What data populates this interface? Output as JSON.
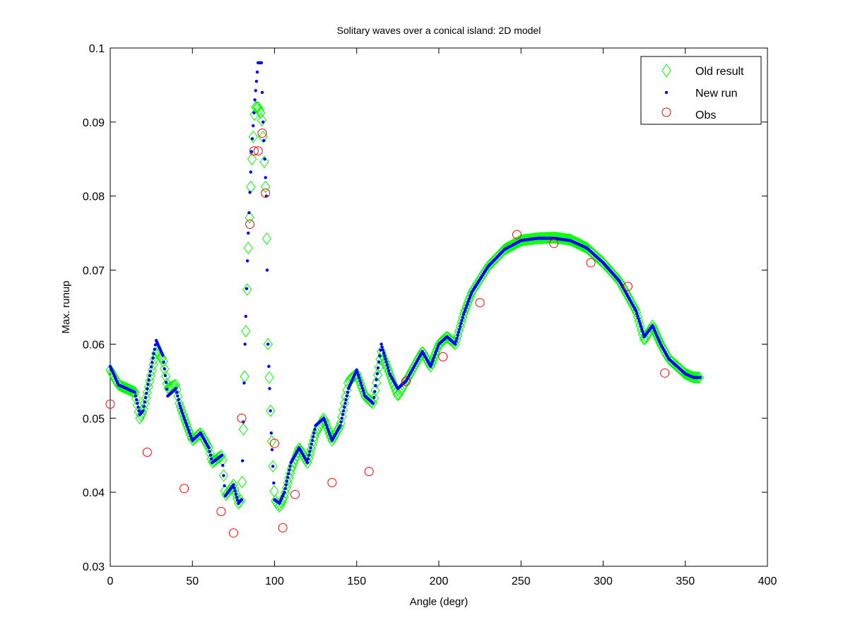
{
  "chart_data": {
    "type": "scatter",
    "title": "Solitary waves over a conical island: 2D model",
    "xlabel": "Angle (degr)",
    "ylabel": "Max. runup",
    "xlim": [
      0,
      400
    ],
    "ylim": [
      0.03,
      0.1
    ],
    "xticks": [
      0,
      50,
      100,
      150,
      200,
      250,
      300,
      350,
      400
    ],
    "yticks": [
      0.03,
      0.04,
      0.05,
      0.06,
      0.07,
      0.08,
      0.09,
      0.1
    ],
    "xtick_labels": [
      "0",
      "50",
      "100",
      "150",
      "200",
      "250",
      "300",
      "350",
      "400"
    ],
    "ytick_labels": [
      "0.03",
      "0.04",
      "0.05",
      "0.06",
      "0.07",
      "0.08",
      "0.09",
      "0.1"
    ],
    "grid": false,
    "legend_position": "top-right",
    "series": [
      {
        "name": "Old result",
        "marker": "diamond",
        "color": "#00ff00",
        "points": [
          [
            0,
            0.0565
          ],
          [
            5,
            0.0545
          ],
          [
            10,
            0.054
          ],
          [
            15,
            0.0535
          ],
          [
            18,
            0.05
          ],
          [
            20,
            0.051
          ],
          [
            28,
            0.059
          ],
          [
            32,
            0.058
          ],
          [
            35,
            0.054
          ],
          [
            40,
            0.0545
          ],
          [
            42,
            0.052
          ],
          [
            45,
            0.05
          ],
          [
            50,
            0.047
          ],
          [
            55,
            0.048
          ],
          [
            60,
            0.046
          ],
          [
            62,
            0.044
          ],
          [
            68,
            0.045
          ],
          [
            70,
            0.0395
          ],
          [
            75,
            0.041
          ],
          [
            78,
            0.0385
          ],
          [
            80,
            0.039
          ],
          [
            82,
            0.058
          ],
          [
            84,
            0.073
          ],
          [
            86,
            0.084
          ],
          [
            88,
            0.092
          ],
          [
            90,
            0.092
          ],
          [
            92,
            0.091
          ],
          [
            93,
            0.088
          ],
          [
            95,
            0.079
          ],
          [
            96,
            0.06
          ],
          [
            98,
            0.048
          ],
          [
            100,
            0.039
          ],
          [
            103,
            0.038
          ],
          [
            106,
            0.0395
          ],
          [
            110,
            0.043
          ],
          [
            115,
            0.046
          ],
          [
            120,
            0.044
          ],
          [
            125,
            0.048
          ],
          [
            130,
            0.05
          ],
          [
            135,
            0.047
          ],
          [
            140,
            0.049
          ],
          [
            145,
            0.055
          ],
          [
            150,
            0.056
          ],
          [
            155,
            0.053
          ],
          [
            160,
            0.052
          ],
          [
            165,
            0.059
          ],
          [
            170,
            0.056
          ],
          [
            175,
            0.053
          ],
          [
            180,
            0.055
          ],
          [
            185,
            0.057
          ],
          [
            190,
            0.059
          ],
          [
            195,
            0.057
          ],
          [
            200,
            0.06
          ],
          [
            205,
            0.061
          ],
          [
            210,
            0.06
          ],
          [
            215,
            0.064
          ],
          [
            220,
            0.067
          ],
          [
            230,
            0.0705
          ],
          [
            240,
            0.0728
          ],
          [
            250,
            0.074
          ],
          [
            260,
            0.0743
          ],
          [
            270,
            0.0744
          ],
          [
            280,
            0.0741
          ],
          [
            290,
            0.073
          ],
          [
            300,
            0.071
          ],
          [
            310,
            0.0685
          ],
          [
            315,
            0.0665
          ],
          [
            320,
            0.0645
          ],
          [
            325,
            0.0605
          ],
          [
            330,
            0.0625
          ],
          [
            335,
            0.06
          ],
          [
            340,
            0.058
          ],
          [
            345,
            0.057
          ],
          [
            350,
            0.056
          ],
          [
            355,
            0.0555
          ],
          [
            359,
            0.0555
          ]
        ]
      },
      {
        "name": "New run",
        "marker": "dot",
        "color": "#0000ff",
        "points": [
          [
            0,
            0.057
          ],
          [
            5,
            0.0545
          ],
          [
            10,
            0.054
          ],
          [
            15,
            0.0535
          ],
          [
            18,
            0.0505
          ],
          [
            20,
            0.051
          ],
          [
            28,
            0.0605
          ],
          [
            32,
            0.0585
          ],
          [
            35,
            0.053
          ],
          [
            40,
            0.054
          ],
          [
            42,
            0.052
          ],
          [
            45,
            0.05
          ],
          [
            50,
            0.047
          ],
          [
            55,
            0.048
          ],
          [
            60,
            0.046
          ],
          [
            62,
            0.044
          ],
          [
            68,
            0.045
          ],
          [
            70,
            0.0395
          ],
          [
            75,
            0.041
          ],
          [
            78,
            0.0385
          ],
          [
            80,
            0.039
          ],
          [
            82,
            0.06
          ],
          [
            84,
            0.075
          ],
          [
            86,
            0.086
          ],
          [
            88,
            0.093
          ],
          [
            90,
            0.098
          ],
          [
            92,
            0.098
          ],
          [
            93,
            0.09
          ],
          [
            95,
            0.08
          ],
          [
            96,
            0.06
          ],
          [
            98,
            0.048
          ],
          [
            100,
            0.039
          ],
          [
            103,
            0.0385
          ],
          [
            106,
            0.04
          ],
          [
            110,
            0.044
          ],
          [
            115,
            0.046
          ],
          [
            120,
            0.044
          ],
          [
            125,
            0.049
          ],
          [
            130,
            0.05
          ],
          [
            135,
            0.047
          ],
          [
            140,
            0.049
          ],
          [
            145,
            0.054
          ],
          [
            150,
            0.0565
          ],
          [
            155,
            0.053
          ],
          [
            160,
            0.052
          ],
          [
            165,
            0.06
          ],
          [
            170,
            0.056
          ],
          [
            175,
            0.054
          ],
          [
            180,
            0.055
          ],
          [
            185,
            0.057
          ],
          [
            190,
            0.059
          ],
          [
            195,
            0.057
          ],
          [
            200,
            0.06
          ],
          [
            205,
            0.061
          ],
          [
            210,
            0.06
          ],
          [
            215,
            0.064
          ],
          [
            220,
            0.067
          ],
          [
            230,
            0.0705
          ],
          [
            240,
            0.0728
          ],
          [
            250,
            0.074
          ],
          [
            260,
            0.0743
          ],
          [
            270,
            0.0743
          ],
          [
            280,
            0.074
          ],
          [
            290,
            0.073
          ],
          [
            300,
            0.071
          ],
          [
            310,
            0.0685
          ],
          [
            315,
            0.0665
          ],
          [
            320,
            0.0645
          ],
          [
            325,
            0.061
          ],
          [
            330,
            0.0625
          ],
          [
            335,
            0.06
          ],
          [
            340,
            0.058
          ],
          [
            345,
            0.057
          ],
          [
            350,
            0.056
          ],
          [
            355,
            0.0555
          ],
          [
            359,
            0.0555
          ]
        ]
      },
      {
        "name": "Obs",
        "marker": "circle",
        "color": "#ff0000",
        "points": [
          [
            0,
            0.0519
          ],
          [
            22.5,
            0.0454
          ],
          [
            45,
            0.0405
          ],
          [
            67.5,
            0.0374
          ],
          [
            75,
            0.0345
          ],
          [
            80,
            0.05
          ],
          [
            85,
            0.0762
          ],
          [
            87.5,
            0.0861
          ],
          [
            90,
            0.0861
          ],
          [
            92.5,
            0.0885
          ],
          [
            94.5,
            0.0804
          ],
          [
            100,
            0.0466
          ],
          [
            105,
            0.0352
          ],
          [
            112.5,
            0.0397
          ],
          [
            135,
            0.0413
          ],
          [
            157.5,
            0.0428
          ],
          [
            180,
            0.055
          ],
          [
            202.5,
            0.0583
          ],
          [
            225,
            0.0656
          ],
          [
            247.5,
            0.0748
          ],
          [
            270,
            0.0736
          ],
          [
            292.5,
            0.071
          ],
          [
            315,
            0.0678
          ],
          [
            337.5,
            0.0561
          ]
        ]
      }
    ]
  }
}
